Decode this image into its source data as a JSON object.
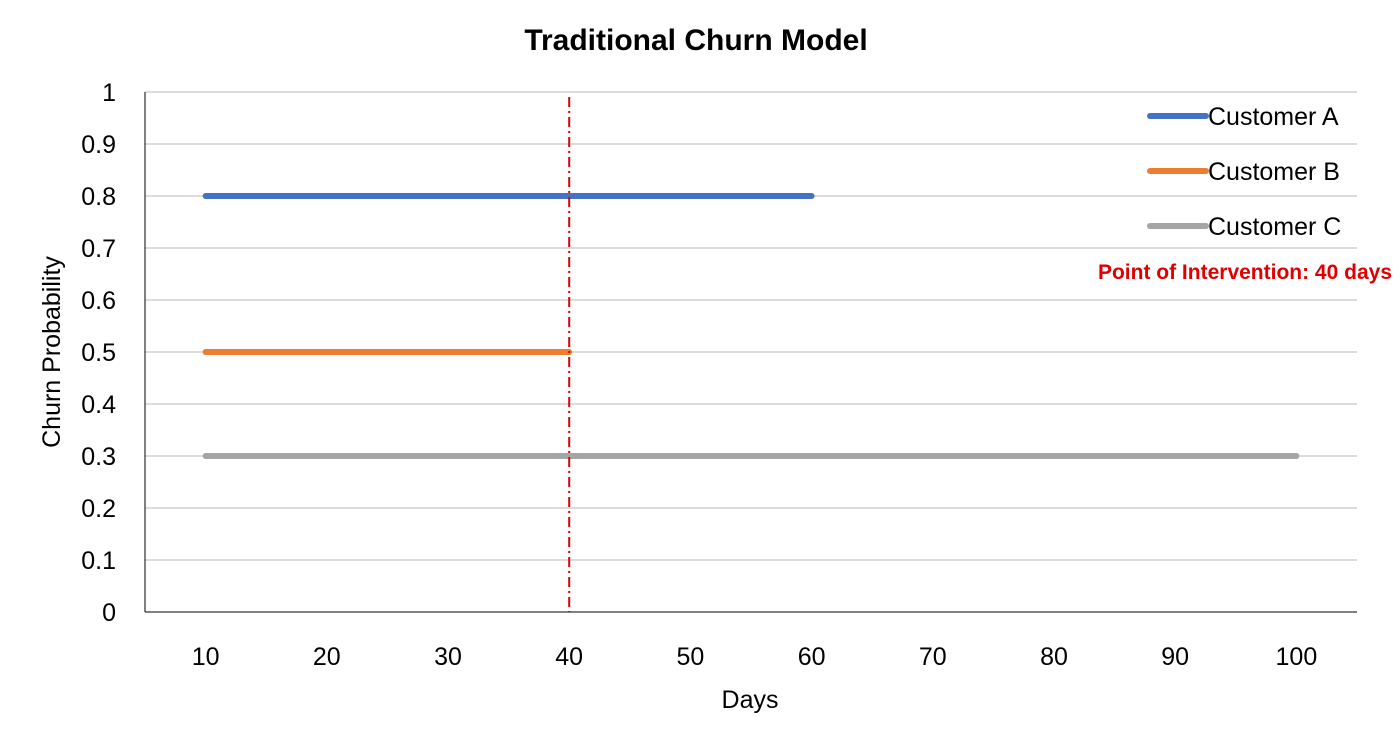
{
  "chart_data": {
    "type": "line",
    "title": "Traditional Churn Model",
    "xlabel": "Days",
    "ylabel": "Churn Probability",
    "x_ticks": [
      10,
      20,
      30,
      40,
      50,
      60,
      70,
      80,
      90,
      100
    ],
    "y_ticks": [
      "0",
      "0.1",
      "0.2",
      "0.3",
      "0.4",
      "0.5",
      "0.6",
      "0.7",
      "0.8",
      "0.9",
      "1"
    ],
    "xlim": [
      5,
      105
    ],
    "ylim": [
      0,
      1
    ],
    "grid": "horizontal",
    "legend_position": "top-right",
    "series": [
      {
        "name": "Customer A",
        "color": "#4472C4",
        "x": [
          10,
          60
        ],
        "y": [
          0.8,
          0.8
        ]
      },
      {
        "name": "Customer B",
        "color": "#ED7D31",
        "x": [
          10,
          40
        ],
        "y": [
          0.5,
          0.5
        ]
      },
      {
        "name": "Customer C",
        "color": "#A5A5A5",
        "x": [
          10,
          100
        ],
        "y": [
          0.3,
          0.3
        ]
      }
    ],
    "annotation": {
      "text": "Point of Intervention: 40 days",
      "x": 40,
      "color": "#E00000",
      "line_style": "dash-dot"
    }
  }
}
